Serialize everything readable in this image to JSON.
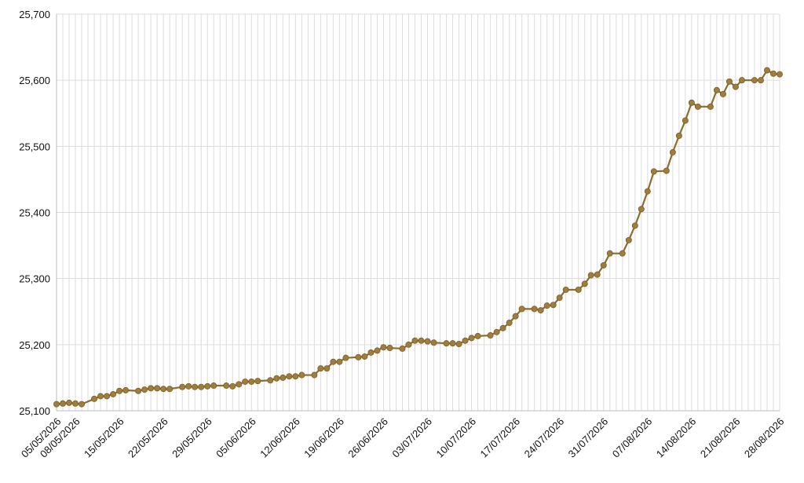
{
  "chart_data": {
    "type": "line",
    "title": "",
    "xlabel": "",
    "ylabel": "",
    "ylim": [
      25100,
      25700
    ],
    "yticks": [
      "25,100",
      "25,200",
      "25,300",
      "25,400",
      "25,500",
      "25,600",
      "25,700"
    ],
    "x_start": "05/05/2026",
    "x_end": "28/08/2026",
    "xticks": [
      "05/05/2026",
      "08/05/2026",
      "15/05/2026",
      "22/05/2026",
      "29/05/2026",
      "05/06/2026",
      "12/06/2026",
      "19/06/2026",
      "26/06/2026",
      "03/07/2026",
      "10/07/2026",
      "17/07/2026",
      "24/07/2026",
      "31/07/2026",
      "07/08/2026",
      "14/08/2026",
      "21/08/2026",
      "28/08/2026"
    ],
    "grid": true,
    "legend": "none",
    "series": [
      {
        "color": "#8a6d2f",
        "marker_color": "#a07d3d",
        "x": [
          "05/05/2026",
          "06/05/2026",
          "07/05/2026",
          "08/05/2026",
          "09/05/2026",
          "11/05/2026",
          "12/05/2026",
          "13/05/2026",
          "14/05/2026",
          "15/05/2026",
          "16/05/2026",
          "18/05/2026",
          "19/05/2026",
          "20/05/2026",
          "21/05/2026",
          "22/05/2026",
          "23/05/2026",
          "25/05/2026",
          "26/05/2026",
          "27/05/2026",
          "28/05/2026",
          "29/05/2026",
          "30/05/2026",
          "01/06/2026",
          "02/06/2026",
          "03/06/2026",
          "04/06/2026",
          "05/06/2026",
          "06/06/2026",
          "08/06/2026",
          "09/06/2026",
          "10/06/2026",
          "11/06/2026",
          "12/06/2026",
          "13/06/2026",
          "15/06/2026",
          "16/06/2026",
          "17/06/2026",
          "18/06/2026",
          "19/06/2026",
          "20/06/2026",
          "22/06/2026",
          "23/06/2026",
          "24/06/2026",
          "25/06/2026",
          "26/06/2026",
          "27/06/2026",
          "29/06/2026",
          "30/06/2026",
          "01/07/2026",
          "02/07/2026",
          "03/07/2026",
          "04/07/2026",
          "06/07/2026",
          "07/07/2026",
          "08/07/2026",
          "09/07/2026",
          "10/07/2026",
          "11/07/2026",
          "13/07/2026",
          "14/07/2026",
          "15/07/2026",
          "16/07/2026",
          "17/07/2026",
          "18/07/2026",
          "20/07/2026",
          "21/07/2026",
          "22/07/2026",
          "23/07/2026",
          "24/07/2026",
          "25/07/2026",
          "27/07/2026",
          "28/07/2026",
          "29/07/2026",
          "30/07/2026",
          "31/07/2026",
          "01/08/2026",
          "03/08/2026",
          "04/08/2026",
          "05/08/2026",
          "06/08/2026",
          "07/08/2026",
          "08/08/2026",
          "10/08/2026",
          "11/08/2026",
          "12/08/2026",
          "13/08/2026",
          "14/08/2026",
          "15/08/2026",
          "17/08/2026",
          "18/08/2026",
          "19/08/2026",
          "20/08/2026",
          "21/08/2026",
          "22/08/2026",
          "24/08/2026",
          "25/08/2026",
          "26/08/2026",
          "27/08/2026",
          "28/08/2026"
        ],
        "y": [
          25110,
          25111,
          25112,
          25111,
          25110,
          25118,
          25122,
          25122,
          25125,
          25130,
          25131,
          25130,
          25132,
          25134,
          25134,
          25133,
          25133,
          25136,
          25137,
          25136,
          25136,
          25137,
          25138,
          25138,
          25137,
          25140,
          25144,
          25144,
          25145,
          25146,
          25149,
          25150,
          25152,
          25152,
          25154,
          25154,
          25164,
          25164,
          25174,
          25174,
          25180,
          25181,
          25182,
          25188,
          25191,
          25196,
          25195,
          25194,
          25200,
          25206,
          25206,
          25205,
          25203,
          25202,
          25202,
          25201,
          25206,
          25210,
          25213,
          25214,
          25219,
          25225,
          25233,
          25243,
          25254,
          25254,
          25252,
          25259,
          25260,
          25271,
          25283,
          25283,
          25292,
          25305,
          25306,
          25320,
          25338,
          25338,
          25358,
          25380,
          25405,
          25432,
          25462,
          25463,
          25491,
          25516,
          25539,
          25566,
          25560,
          25560,
          25585,
          25579,
          25598,
          25590,
          25600,
          25600,
          25600,
          25615,
          25610,
          25609
        ]
      }
    ]
  }
}
